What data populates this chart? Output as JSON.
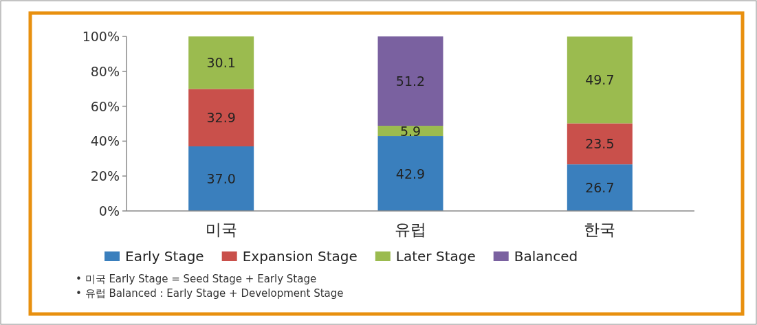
{
  "chart_data": {
    "type": "bar",
    "stacked": true,
    "categories": [
      "미국",
      "유럽",
      "한국"
    ],
    "series": [
      {
        "name": "Early Stage",
        "color": "#3a7fbd",
        "values": [
          37.0,
          42.9,
          26.7
        ],
        "value_labels": [
          "37.0",
          "42.9",
          "26.7"
        ]
      },
      {
        "name": "Expansion Stage",
        "color": "#c9504b",
        "values": [
          32.9,
          null,
          23.5
        ],
        "value_labels": [
          "32.9",
          null,
          "23.5"
        ]
      },
      {
        "name": "Later Stage",
        "color": "#9bbb4f",
        "values": [
          30.1,
          5.9,
          49.7
        ],
        "value_labels": [
          "30.1",
          "5.9",
          "49.7"
        ]
      },
      {
        "name": "Balanced",
        "color": "#7a61a0",
        "values": [
          null,
          51.2,
          null
        ],
        "value_labels": [
          null,
          "51.2",
          null
        ]
      }
    ],
    "ylim": [
      0,
      100
    ],
    "yticks": [
      {
        "value": 0,
        "label": "0%"
      },
      {
        "value": 20,
        "label": "20%"
      },
      {
        "value": 40,
        "label": "40%"
      },
      {
        "value": 60,
        "label": "60%"
      },
      {
        "value": 80,
        "label": "80%"
      },
      {
        "value": 100,
        "label": "100%"
      }
    ],
    "legend": "bottom",
    "annotations": [
      "• 미국 Early Stage = Seed Stage + Early Stage",
      "• 유럽 Balanced : Early Stage + Development Stage"
    ]
  }
}
